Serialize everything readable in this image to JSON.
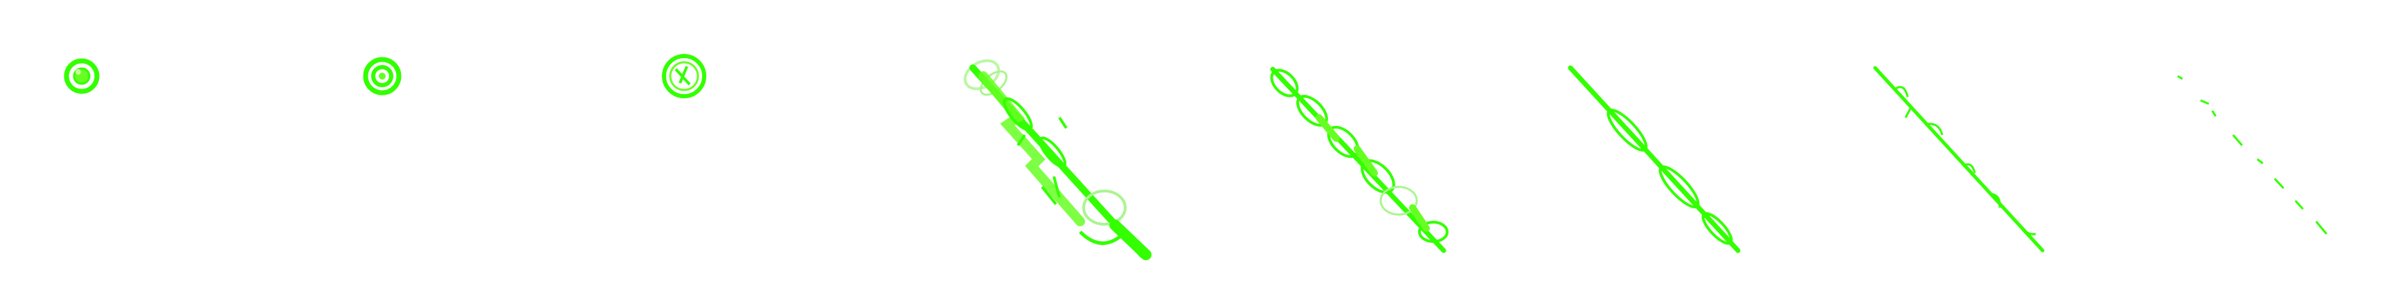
{
  "frames": [
    {
      "kind": "circle"
    },
    {
      "kind": "circle"
    },
    {
      "kind": "circle"
    },
    {
      "kind": "diagonal"
    },
    {
      "kind": "diagonal"
    },
    {
      "kind": "diagonal"
    },
    {
      "kind": "diagonal"
    },
    {
      "kind": "diagonal"
    }
  ],
  "colors": {
    "stroke": "#33ff00",
    "fill": "#66ff22",
    "faint": "#aaf58f",
    "background": "#ffffff"
  }
}
